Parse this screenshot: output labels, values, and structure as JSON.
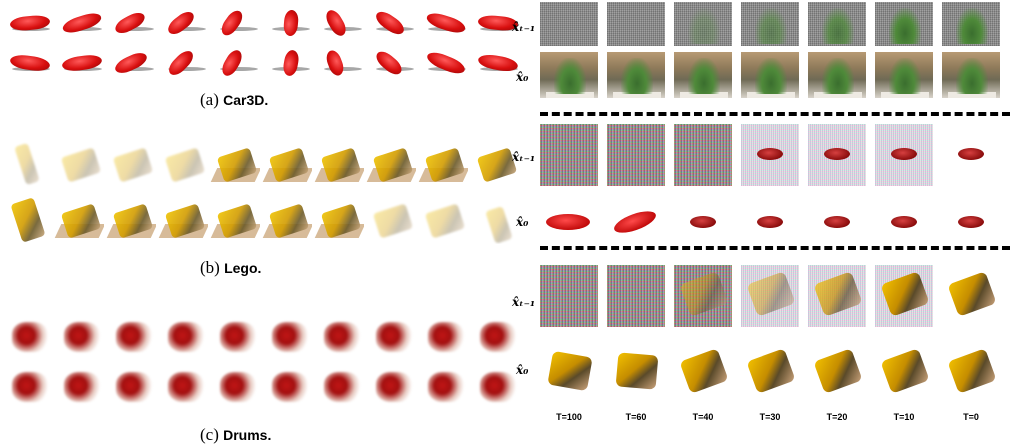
{
  "captions": {
    "car3d": {
      "prefix": "(a)",
      "name": "Car3D."
    },
    "lego": {
      "prefix": "(b)",
      "name": "Lego."
    },
    "drums": {
      "prefix": "(c)",
      "name": "Drums."
    }
  },
  "row_labels": {
    "xt": "x̂ₜ₋₁",
    "x0": "x̂₀"
  },
  "timesteps": [
    "T=100",
    "T=60",
    "T=40",
    "T=30",
    "T=20",
    "T=10",
    "T=0"
  ],
  "colors": {
    "car_red": "#d80f0f",
    "lego_yellow": "#f0c400",
    "drum_red": "#c01515",
    "plant_green": "#4f8a3a"
  }
}
